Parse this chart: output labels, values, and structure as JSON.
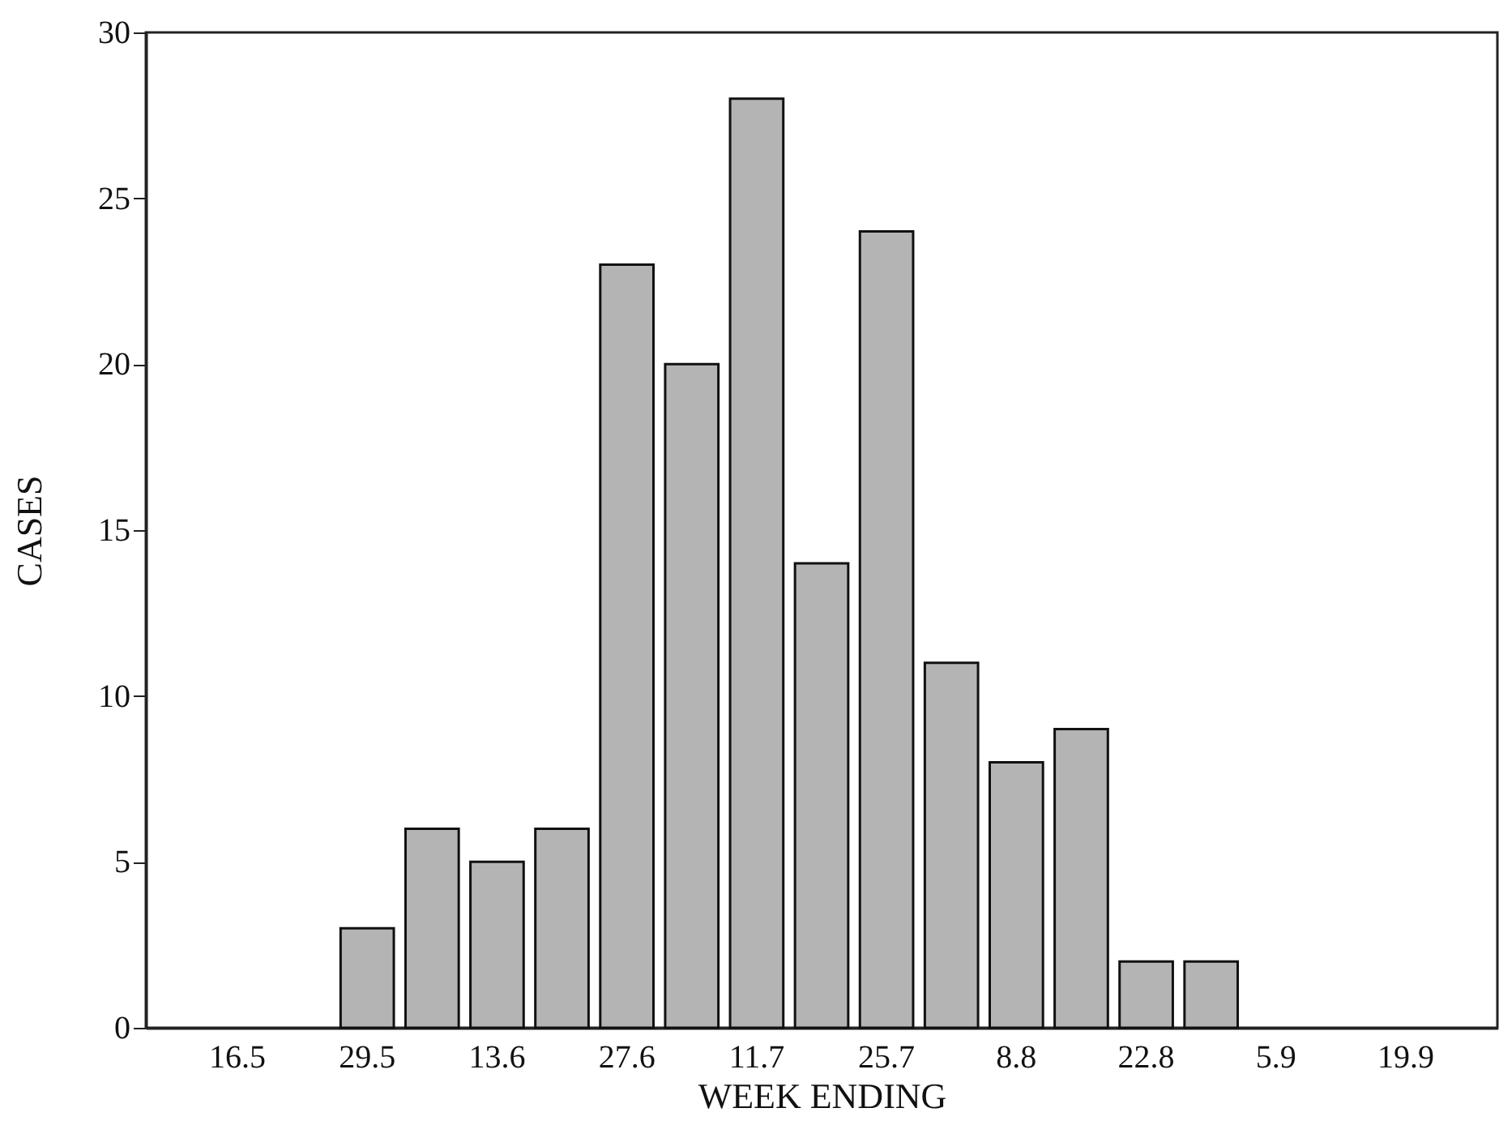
{
  "chart_data": {
    "type": "bar",
    "xlabel": "WEEK ENDING",
    "ylabel": "CASES",
    "categories": [
      "16.5",
      null,
      "29.5",
      null,
      "13.6",
      null,
      "27.6",
      null,
      "11.7",
      null,
      "25.7",
      null,
      "8.8",
      null,
      "22.8",
      null,
      "5.9",
      null,
      "19.9"
    ],
    "values": [
      null,
      null,
      3,
      6,
      5,
      6,
      23,
      20,
      28,
      14,
      24,
      11,
      8,
      9,
      2,
      2,
      null,
      null,
      null
    ],
    "color": "#b4b4b4",
    "ylim": [
      0,
      30
    ],
    "yticks": [
      0,
      5,
      10,
      15,
      20,
      25,
      30
    ],
    "grid": false
  }
}
